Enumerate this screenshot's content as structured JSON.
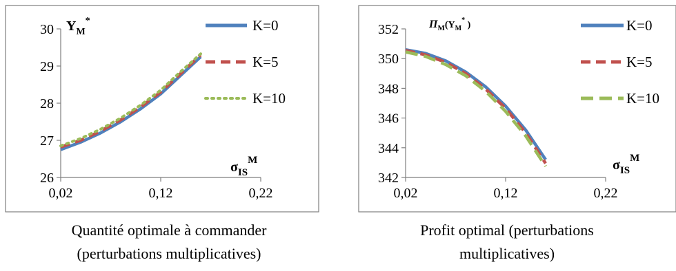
{
  "chart_data": [
    {
      "type": "line",
      "ylabel_main": "Y",
      "ylabel_sub": "M",
      "ylabel_sup": "*",
      "xlabel_main": "σ",
      "xlabel_sub": "IS",
      "xlabel_sup": "M",
      "xlim": [
        0.02,
        0.22
      ],
      "ylim": [
        26,
        30
      ],
      "x_ticks": [
        "0,02",
        "0,12",
        "0,22"
      ],
      "x_tick_values": [
        0.02,
        0.12,
        0.22
      ],
      "y_ticks": [
        "26",
        "27",
        "28",
        "29",
        "30"
      ],
      "y_tick_values": [
        26,
        27,
        28,
        29,
        30
      ],
      "legend_position": "top-right",
      "caption": [
        "Quantité optimale à commander",
        "(perturbations multiplicatives)"
      ],
      "series": [
        {
          "name": "K=0",
          "color": "#4f81bd",
          "style": "solid",
          "x": [
            0.02,
            0.04,
            0.06,
            0.08,
            0.1,
            0.12,
            0.14,
            0.16
          ],
          "values": [
            26.75,
            26.95,
            27.2,
            27.5,
            27.85,
            28.25,
            28.75,
            29.25
          ]
        },
        {
          "name": "K=5",
          "color": "#c0504d",
          "style": "dashed",
          "x": [
            0.02,
            0.04,
            0.06,
            0.08,
            0.1,
            0.12,
            0.14,
            0.16
          ],
          "values": [
            26.82,
            27.0,
            27.25,
            27.55,
            27.9,
            28.3,
            28.8,
            29.3
          ]
        },
        {
          "name": "K=10",
          "color": "#9bbb59",
          "style": "dotted",
          "x": [
            0.02,
            0.04,
            0.06,
            0.08,
            0.1,
            0.12,
            0.14,
            0.16
          ],
          "values": [
            26.85,
            27.05,
            27.3,
            27.6,
            27.95,
            28.35,
            28.85,
            29.33
          ]
        }
      ]
    },
    {
      "type": "line",
      "ylabel_main": "Π",
      "ylabel_sub": "M",
      "ylabel_arg": "(Y",
      "ylabel_arg_sub": "M",
      "ylabel_arg_sup": "*",
      "ylabel_arg_close": ")",
      "xlabel_main": "σ",
      "xlabel_sub": "IS",
      "xlabel_sup": "M",
      "xlim": [
        0.02,
        0.22
      ],
      "ylim": [
        342,
        352
      ],
      "x_ticks": [
        "0,02",
        "0,12",
        "0,22"
      ],
      "x_tick_values": [
        0.02,
        0.12,
        0.22
      ],
      "y_ticks": [
        "342",
        "344",
        "346",
        "348",
        "350",
        "352"
      ],
      "y_tick_values": [
        342,
        344,
        346,
        348,
        350,
        352
      ],
      "legend_position": "top-right",
      "caption": [
        "Profit optimal (perturbations",
        "multiplicatives)"
      ],
      "series": [
        {
          "name": "K=0",
          "color": "#4f81bd",
          "style": "solid",
          "x": [
            0.02,
            0.04,
            0.06,
            0.08,
            0.1,
            0.12,
            0.14,
            0.16
          ],
          "values": [
            350.6,
            350.35,
            349.85,
            349.1,
            348.1,
            346.8,
            345.2,
            343.2
          ]
        },
        {
          "name": "K=5",
          "color": "#c0504d",
          "style": "dashed",
          "x": [
            0.02,
            0.04,
            0.06,
            0.08,
            0.1,
            0.12,
            0.14,
            0.16
          ],
          "values": [
            350.55,
            350.25,
            349.75,
            349.0,
            347.95,
            346.65,
            345.0,
            342.95
          ]
        },
        {
          "name": "K=10",
          "color": "#9bbb59",
          "style": "longdash",
          "x": [
            0.02,
            0.04,
            0.06,
            0.08,
            0.1,
            0.12,
            0.14,
            0.16
          ],
          "values": [
            350.45,
            350.15,
            349.6,
            348.85,
            347.8,
            346.45,
            344.8,
            342.75
          ]
        }
      ]
    }
  ]
}
